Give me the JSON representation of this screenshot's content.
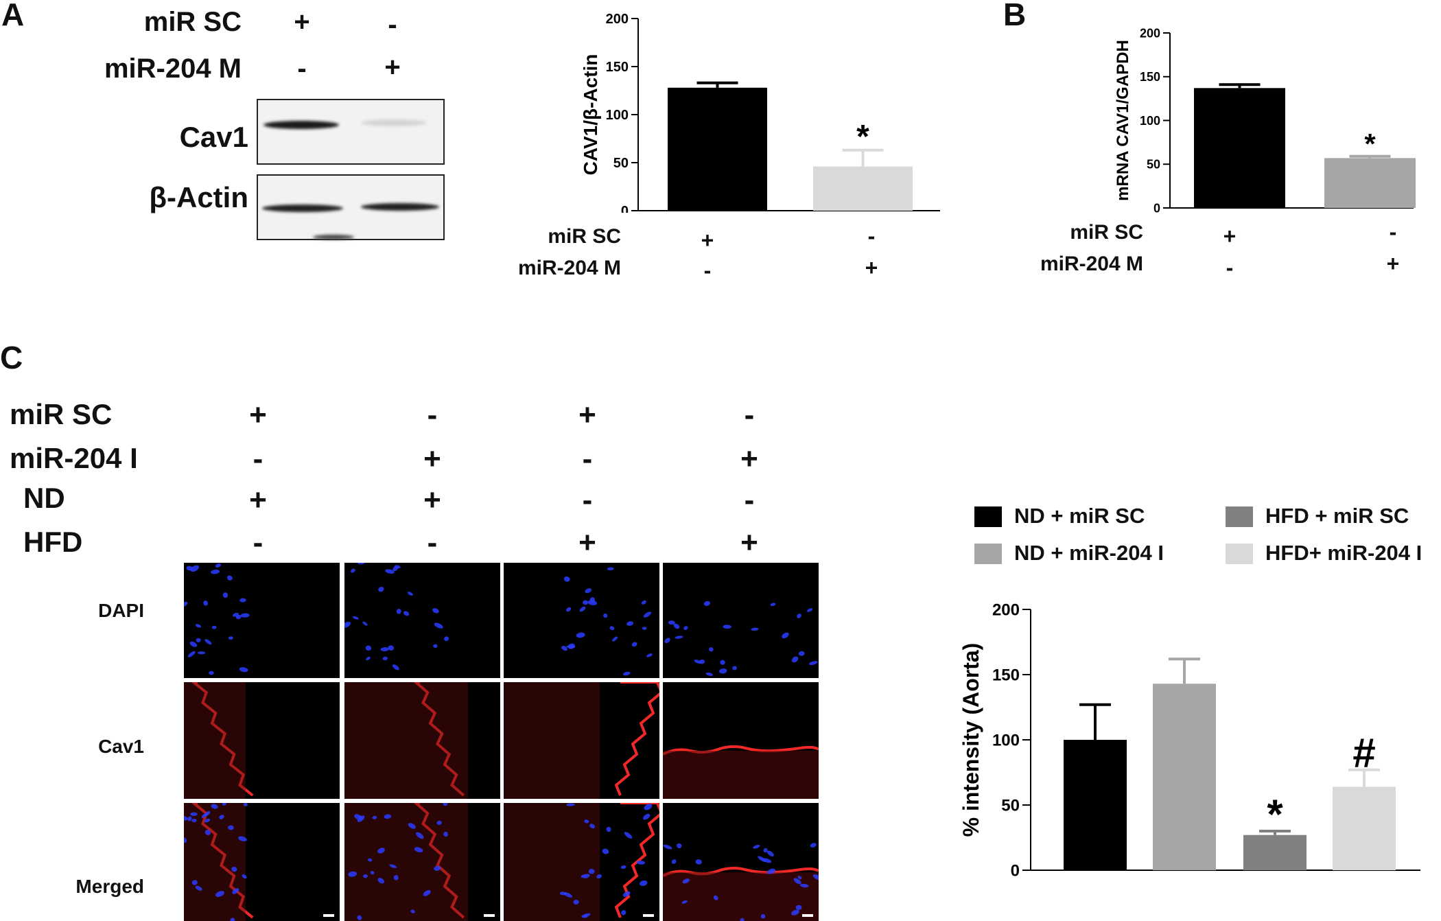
{
  "panels": {
    "a": "A",
    "b": "B",
    "c": "C"
  },
  "a": {
    "row1_label": "miR SC",
    "row2_label": "miR-204 M",
    "row1_signs": [
      "+",
      "-"
    ],
    "row2_signs": [
      "-",
      "+"
    ],
    "blot1_label": "Cav1",
    "blot2_label": "β-Actin"
  },
  "row_labels": {
    "sc": "miR SC",
    "m": "miR-204 M"
  },
  "c": {
    "cond_labels": [
      "miR SC",
      "miR-204 I",
      "ND",
      "HFD"
    ],
    "cond_signs": [
      [
        "+",
        "-",
        "+",
        "-"
      ],
      [
        "-",
        "+",
        "-",
        "+"
      ],
      [
        "+",
        "+",
        "-",
        "-"
      ],
      [
        "-",
        "-",
        "+",
        "+"
      ]
    ],
    "image_rows": [
      "DAPI",
      "Cav1",
      "Merged"
    ]
  },
  "chart_data": [
    {
      "id": "A-bar",
      "type": "bar",
      "ylabel": "CAV1/β-Actin",
      "ylim": [
        0,
        200
      ],
      "yticks": [
        0,
        50,
        100,
        150,
        200
      ],
      "series": [
        {
          "values": [
            128,
            46
          ],
          "errors": [
            5,
            17
          ],
          "colors": [
            "#000000",
            "#d9d9d9"
          ],
          "annotations": [
            "",
            "*"
          ]
        }
      ],
      "condition_rows": [
        [
          "+",
          "-"
        ],
        [
          "-",
          "+"
        ]
      ]
    },
    {
      "id": "B-bar",
      "type": "bar",
      "ylabel": "mRNA CAV1/GAPDH",
      "ylim": [
        0,
        200
      ],
      "yticks": [
        0,
        50,
        100,
        150,
        200
      ],
      "series": [
        {
          "values": [
            137,
            57
          ],
          "errors": [
            4,
            2
          ],
          "colors": [
            "#000000",
            "#a6a6a8"
          ],
          "annotations": [
            "",
            "*"
          ]
        }
      ],
      "condition_rows": [
        [
          "+",
          "-"
        ],
        [
          "-",
          "+"
        ]
      ]
    },
    {
      "id": "C-bar",
      "type": "bar",
      "ylabel": "% intensity (Aorta)",
      "ylim": [
        0,
        200
      ],
      "yticks": [
        0,
        50,
        100,
        150,
        200
      ],
      "legend_position": "top",
      "categories": [
        "ND + miR SC",
        "ND + miR-204 I",
        "HFD + miR SC",
        "HFD+ miR-204 I"
      ],
      "series": [
        {
          "values": [
            100,
            143,
            27,
            64
          ],
          "errors": [
            27,
            19,
            3,
            13
          ],
          "colors": [
            "#000000",
            "#a6a6a8",
            "#808080",
            "#d9d9d9"
          ],
          "annotations": [
            "",
            "",
            "*",
            "#"
          ]
        }
      ]
    }
  ]
}
